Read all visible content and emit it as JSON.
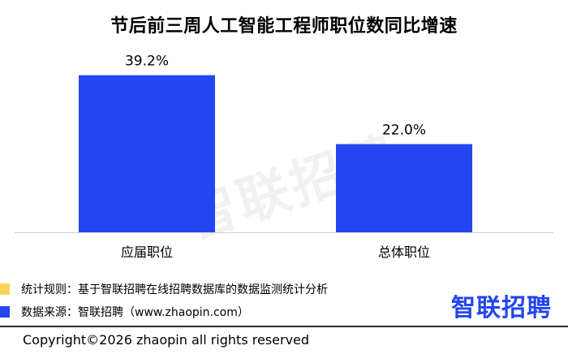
{
  "chart_data": {
    "type": "bar",
    "title": "节后前三周人工智能工程师职位数同比增速",
    "categories": [
      "应届职位",
      "总体职位"
    ],
    "values": [
      39.2,
      22.0
    ],
    "value_labels": [
      "39.2%",
      "22.0%"
    ],
    "ylim": [
      0,
      45
    ],
    "grid": false,
    "bar_color": "#2346f0"
  },
  "watermark": "智联招聘",
  "legend": {
    "rule": {
      "text": "统计规则：基于智联招聘在线招聘数据库的数据监测统计分析",
      "color": "#fcd35a"
    },
    "source": {
      "text": "数据来源：智联招聘（www.zhaopin.com）",
      "color": "#2346f0"
    }
  },
  "logo": {
    "text": "智联招聘",
    "color": "#2346f0"
  },
  "copyright": "Copyright©2026 zhaopin all rights reserved"
}
